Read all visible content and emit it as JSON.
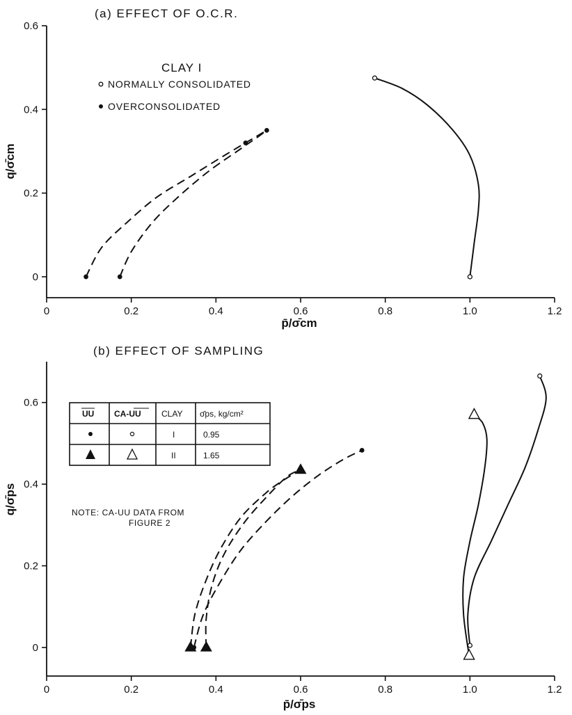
{
  "chart_data": [
    {
      "type": "line",
      "title": "(a) EFFECT OF O.C.R.",
      "xlabel": "p̄/σ̄cm",
      "ylabel": "q/σ̄cm",
      "xlim": [
        0,
        1.2
      ],
      "ylim": [
        -0.05,
        0.6
      ],
      "xticks": [
        "0",
        "0.2",
        "0.4",
        "0.6",
        "0.8",
        "1.0",
        "1.2"
      ],
      "yticks": [
        "0",
        "0.2",
        "0.4",
        "0.6"
      ],
      "grid": false,
      "legend": {
        "title": "CLAY I",
        "position": "top-left",
        "entries": [
          {
            "marker": "open-circle",
            "label": "NORMALLY CONSOLIDATED"
          },
          {
            "marker": "filled-circle",
            "label": "OVERCONSOLIDATED"
          }
        ]
      },
      "series": [
        {
          "name": "NORMALLY CONSOLIDATED",
          "marker": "open-circle",
          "line": "solid",
          "x": [
            1.0,
            1.01,
            1.02,
            1.02,
            1.0,
            0.96,
            0.9,
            0.84,
            0.775
          ],
          "y": [
            0.0,
            0.08,
            0.16,
            0.22,
            0.29,
            0.35,
            0.41,
            0.45,
            0.475
          ],
          "markers_at": [
            0,
            8
          ]
        },
        {
          "name": "OVERCONSOLIDATED",
          "marker": "filled-circle",
          "line": "dashed",
          "x": [
            0.093,
            0.13,
            0.19,
            0.26,
            0.34,
            0.42,
            0.47,
            0.52
          ],
          "y": [
            0.0,
            0.07,
            0.13,
            0.19,
            0.24,
            0.29,
            0.32,
            0.35
          ],
          "markers_at": [
            0,
            6,
            7
          ]
        },
        {
          "name": "OVERCONSOLIDATED",
          "marker": "filled-circle",
          "line": "dashed",
          "x": [
            0.173,
            0.2,
            0.25,
            0.31,
            0.38,
            0.45,
            0.5,
            0.52
          ],
          "y": [
            0.0,
            0.06,
            0.13,
            0.19,
            0.25,
            0.3,
            0.335,
            0.35
          ],
          "markers_at": [
            0
          ]
        }
      ]
    },
    {
      "type": "line",
      "title": "(b) EFFECT OF SAMPLING",
      "xlabel": "p̄/σ̄ps",
      "ylabel": "q/σ̄ps",
      "xlim": [
        0,
        1.2
      ],
      "ylim": [
        -0.07,
        0.7
      ],
      "xticks": [
        "0",
        "0.2",
        "0.4",
        "0.6",
        "0.8",
        "1.0",
        "1.2"
      ],
      "yticks": [
        "0",
        "0.2",
        "0.4",
        "0.6"
      ],
      "grid": false,
      "legend_table": {
        "position": "top-left",
        "headers": [
          "UU",
          "CA-UU",
          "CLAY",
          "σ̄ps, kg/cm²"
        ],
        "rows": [
          {
            "uu": "filled-circle",
            "ca_uu": "open-circle",
            "clay": "I",
            "value": "0.95"
          },
          {
            "uu": "filled-triangle",
            "ca_uu": "open-triangle",
            "clay": "II",
            "value": "1.65"
          }
        ]
      },
      "note": [
        "NOTE: CA-UU DATA FROM",
        "FIGURE 2"
      ],
      "series": [
        {
          "name": "CA-UU, CLAY I",
          "marker": "open-circle",
          "line": "solid",
          "x": [
            1.0,
            0.995,
            1.01,
            1.05,
            1.09,
            1.13,
            1.16,
            1.18,
            1.165
          ],
          "y": [
            0.005,
            0.08,
            0.17,
            0.26,
            0.35,
            0.44,
            0.53,
            0.61,
            0.665
          ],
          "markers_at": [
            0,
            8
          ]
        },
        {
          "name": "CA-UU, CLAY II",
          "marker": "open-triangle",
          "line": "solid",
          "x": [
            0.998,
            0.985,
            0.985,
            1.0,
            1.02,
            1.035,
            1.04,
            1.03,
            1.01
          ],
          "y": [
            -0.02,
            0.08,
            0.17,
            0.26,
            0.35,
            0.44,
            0.51,
            0.55,
            0.57
          ],
          "markers_at": [
            0,
            8
          ]
        },
        {
          "name": "UU, CLAY I",
          "marker": "filled-circle",
          "line": "dashed",
          "x": [
            0.348,
            0.37,
            0.41,
            0.46,
            0.52,
            0.58,
            0.64,
            0.7,
            0.745
          ],
          "y": [
            0.0,
            0.08,
            0.16,
            0.24,
            0.31,
            0.37,
            0.42,
            0.46,
            0.483
          ],
          "markers_at": [
            0,
            8
          ]
        },
        {
          "name": "UU, CLAY II",
          "marker": "filled-triangle",
          "line": "dashed",
          "x": [
            0.34,
            0.35,
            0.375,
            0.41,
            0.46,
            0.52,
            0.56,
            0.6
          ],
          "y": [
            0.0,
            0.08,
            0.16,
            0.24,
            0.32,
            0.38,
            0.41,
            0.435
          ],
          "markers_at": [
            0,
            7
          ]
        },
        {
          "name": "UU, CLAY II",
          "marker": "filled-triangle",
          "line": "dashed",
          "x": [
            0.377,
            0.377,
            0.39,
            0.42,
            0.47,
            0.53,
            0.57,
            0.6
          ],
          "y": [
            0.0,
            0.07,
            0.15,
            0.23,
            0.31,
            0.38,
            0.42,
            0.435
          ],
          "markers_at": [
            0
          ]
        }
      ]
    }
  ]
}
